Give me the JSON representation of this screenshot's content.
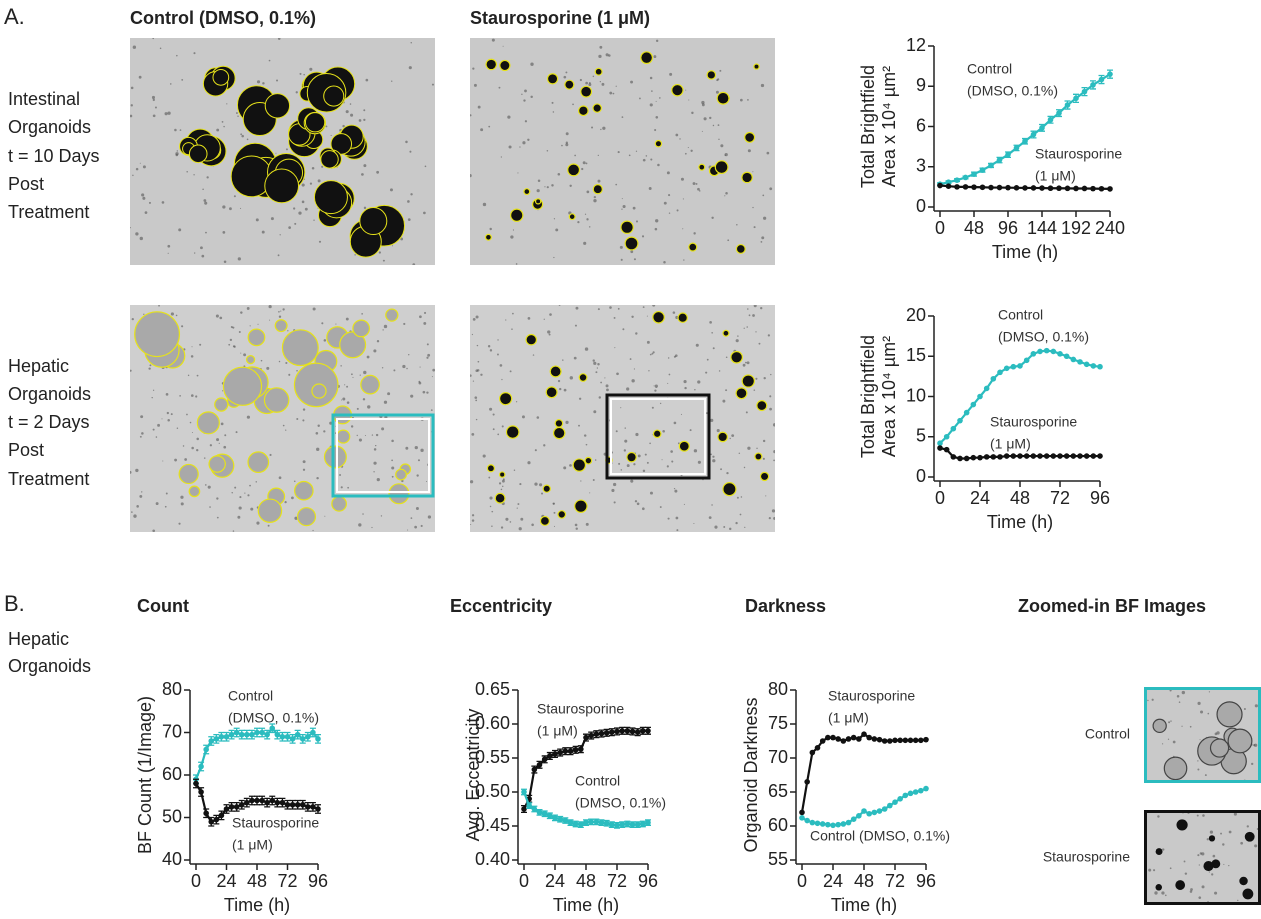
{
  "panels": {
    "a": "A.",
    "b": "B."
  },
  "columns": [
    "Control (DMSO, 0.1%)",
    "Staurosporine (1 μM)"
  ],
  "rows": [
    [
      "Intestinal",
      "Organoids",
      "t = 10 Days",
      "Post",
      "Treatment"
    ],
    [
      "Hepatic",
      "Organoids",
      "t = 2 Days",
      "Post",
      "Treatment"
    ]
  ],
  "panel_b_row": [
    "Hepatic",
    "Organoids"
  ],
  "zoom": {
    "title": "Zoomed-in BF Images",
    "labels": [
      "Control",
      "Staurosporine"
    ]
  },
  "chart_data": [
    {
      "type": "line",
      "xlabel": "Time (h)",
      "ylabel": [
        "Total Brightfield",
        "Area x 10⁴ µm²"
      ],
      "x": [
        0,
        12,
        24,
        36,
        48,
        60,
        72,
        84,
        96,
        108,
        120,
        132,
        144,
        156,
        168,
        180,
        192,
        204,
        216,
        228,
        240
      ],
      "xlim": [
        0,
        240
      ],
      "xticks": [
        0,
        48,
        96,
        144,
        192,
        240
      ],
      "ylim": [
        0,
        12
      ],
      "yticks": [
        0,
        3,
        6,
        9,
        12
      ],
      "series": [
        {
          "annotation": [
            "Control",
            "(DMSO, 0.1%)"
          ],
          "color": "#2bbcbf",
          "values": [
            1.7,
            1.85,
            2.0,
            2.2,
            2.45,
            2.75,
            3.1,
            3.5,
            3.9,
            4.4,
            4.9,
            5.4,
            5.9,
            6.5,
            7.0,
            7.6,
            8.1,
            8.6,
            9.1,
            9.5,
            9.9
          ],
          "errors": [
            0.1,
            0.1,
            0.1,
            0.1,
            0.15,
            0.15,
            0.15,
            0.2,
            0.2,
            0.2,
            0.2,
            0.25,
            0.25,
            0.25,
            0.25,
            0.3,
            0.3,
            0.3,
            0.3,
            0.3,
            0.3
          ]
        },
        {
          "annotation": [
            "Staurosporine",
            "(1 μM)"
          ],
          "color": "#111111",
          "values": [
            1.6,
            1.55,
            1.5,
            1.5,
            1.48,
            1.47,
            1.45,
            1.45,
            1.44,
            1.43,
            1.42,
            1.42,
            1.41,
            1.4,
            1.4,
            1.39,
            1.38,
            1.38,
            1.37,
            1.36,
            1.35
          ]
        }
      ]
    },
    {
      "type": "line",
      "xlabel": "Time (h)",
      "ylabel": [
        "Total Brightfield",
        "Area x 10⁴ µm²"
      ],
      "x": [
        0,
        4,
        8,
        12,
        16,
        20,
        24,
        28,
        32,
        36,
        40,
        44,
        48,
        52,
        56,
        60,
        64,
        68,
        72,
        76,
        80,
        84,
        88,
        92,
        96
      ],
      "xlim": [
        0,
        96
      ],
      "xticks": [
        0,
        24,
        48,
        72,
        96
      ],
      "ylim": [
        0,
        20
      ],
      "yticks": [
        0,
        5,
        10,
        15,
        20
      ],
      "series": [
        {
          "annotation": [
            "Control",
            "(DMSO, 0.1%)"
          ],
          "color": "#2bbcbf",
          "values": [
            4.2,
            5.0,
            6.0,
            7.0,
            8.0,
            9.0,
            10.0,
            11.0,
            12.2,
            13.0,
            13.5,
            13.7,
            13.8,
            14.5,
            15.3,
            15.6,
            15.7,
            15.6,
            15.3,
            15.0,
            14.6,
            14.3,
            14.0,
            13.8,
            13.7
          ]
        },
        {
          "annotation": [
            "Staurosporine",
            "(1 μM)"
          ],
          "color": "#111111",
          "values": [
            3.6,
            3.4,
            2.5,
            2.3,
            2.3,
            2.4,
            2.4,
            2.5,
            2.5,
            2.5,
            2.6,
            2.6,
            2.6,
            2.6,
            2.6,
            2.6,
            2.6,
            2.6,
            2.6,
            2.6,
            2.6,
            2.6,
            2.6,
            2.6,
            2.6
          ]
        }
      ]
    },
    {
      "type": "line",
      "title": "Count",
      "xlabel": "Time (h)",
      "ylabel": [
        "BF Count (1/Image)"
      ],
      "x": [
        0,
        4,
        8,
        12,
        16,
        20,
        24,
        28,
        32,
        36,
        40,
        44,
        48,
        52,
        56,
        60,
        64,
        68,
        72,
        76,
        80,
        84,
        88,
        92,
        96
      ],
      "xlim": [
        0,
        96
      ],
      "xticks": [
        0,
        24,
        48,
        72,
        96
      ],
      "ylim": [
        40,
        80
      ],
      "yticks": [
        40,
        50,
        60,
        70,
        80
      ],
      "series": [
        {
          "annotation": [
            "Control",
            "(DMSO, 0.1%)"
          ],
          "color": "#2bbcbf",
          "values": [
            59,
            62,
            66,
            68,
            68.5,
            69,
            69,
            69.5,
            70,
            69.5,
            69.5,
            69.5,
            70,
            70,
            69.5,
            71,
            69.5,
            69,
            69,
            68.5,
            69.5,
            68.5,
            69,
            70,
            68.5
          ],
          "errors": [
            1,
            1,
            1,
            1,
            1,
            1,
            1,
            1,
            1,
            1,
            1,
            1,
            1,
            1,
            1,
            1,
            1,
            1,
            1,
            1,
            1,
            1,
            1,
            1,
            1
          ]
        },
        {
          "annotation": [
            "Staurosporine",
            "(1 μM)"
          ],
          "color": "#111111",
          "values": [
            58,
            56,
            51,
            49,
            49.5,
            50.5,
            52,
            52.5,
            52.5,
            53,
            53.5,
            54,
            54,
            54,
            53.5,
            54,
            53.5,
            53.5,
            53,
            53,
            53,
            53,
            52.5,
            52.5,
            52
          ],
          "errors": [
            1,
            1,
            1,
            1,
            1,
            1,
            1,
            1,
            1,
            1,
            1,
            1,
            1,
            1,
            1,
            1,
            1,
            1,
            1,
            1,
            1,
            1,
            1,
            1,
            1
          ]
        }
      ]
    },
    {
      "type": "line",
      "title": "Eccentricity",
      "xlabel": "Time (h)",
      "ylabel": [
        "Avg. Eccentricity"
      ],
      "x": [
        0,
        4,
        8,
        12,
        16,
        20,
        24,
        28,
        32,
        36,
        40,
        44,
        48,
        52,
        56,
        60,
        64,
        68,
        72,
        76,
        80,
        84,
        88,
        92,
        96
      ],
      "xlim": [
        0,
        96
      ],
      "xticks": [
        0,
        24,
        48,
        72,
        96
      ],
      "ylim": [
        0.4,
        0.65
      ],
      "yticks": [
        {
          "value": 0.4,
          "label": "0.40"
        },
        {
          "value": 0.45,
          "label": "0.45"
        },
        {
          "value": 0.5,
          "label": "0.50"
        },
        {
          "value": 0.55,
          "label": "0.55"
        },
        {
          "value": 0.6,
          "label": "0.60"
        },
        {
          "value": 0.65,
          "label": "0.65"
        }
      ],
      "series": [
        {
          "annotation": [
            "Staurosporine",
            "(1 μM)"
          ],
          "color": "#111111",
          "values": [
            0.475,
            0.49,
            0.533,
            0.54,
            0.548,
            0.553,
            0.556,
            0.558,
            0.56,
            0.56,
            0.562,
            0.563,
            0.58,
            0.583,
            0.585,
            0.586,
            0.587,
            0.588,
            0.589,
            0.59,
            0.59,
            0.589,
            0.588,
            0.59,
            0.59
          ],
          "errors": [
            0.005,
            0.005,
            0.005,
            0.005,
            0.005,
            0.005,
            0.005,
            0.005,
            0.005,
            0.005,
            0.005,
            0.005,
            0.005,
            0.005,
            0.005,
            0.005,
            0.005,
            0.005,
            0.005,
            0.005,
            0.005,
            0.005,
            0.005,
            0.005,
            0.005
          ]
        },
        {
          "annotation": [
            "Control",
            "(DMSO, 0.1%)"
          ],
          "color": "#2bbcbf",
          "values": [
            0.5,
            0.48,
            0.475,
            0.47,
            0.468,
            0.465,
            0.462,
            0.46,
            0.458,
            0.455,
            0.453,
            0.452,
            0.455,
            0.456,
            0.456,
            0.455,
            0.454,
            0.452,
            0.451,
            0.452,
            0.453,
            0.452,
            0.452,
            0.453,
            0.455
          ],
          "errors": [
            0.004,
            0.004,
            0.004,
            0.004,
            0.004,
            0.004,
            0.004,
            0.004,
            0.004,
            0.004,
            0.004,
            0.004,
            0.004,
            0.004,
            0.004,
            0.004,
            0.004,
            0.004,
            0.004,
            0.004,
            0.004,
            0.004,
            0.004,
            0.004,
            0.004
          ]
        }
      ]
    },
    {
      "type": "line",
      "title": "Darkness",
      "xlabel": "Time (h)",
      "ylabel": [
        "Organoid Darkness"
      ],
      "x": [
        0,
        4,
        8,
        12,
        16,
        20,
        24,
        28,
        32,
        36,
        40,
        44,
        48,
        52,
        56,
        60,
        64,
        68,
        72,
        76,
        80,
        84,
        88,
        92,
        96
      ],
      "xlim": [
        0,
        96
      ],
      "xticks": [
        0,
        24,
        48,
        72,
        96
      ],
      "ylim": [
        55,
        80
      ],
      "yticks": [
        55,
        60,
        65,
        70,
        75,
        80
      ],
      "series": [
        {
          "annotation": [
            "Staurosporine",
            "(1 μM)"
          ],
          "color": "#111111",
          "values": [
            62,
            66.5,
            70.8,
            71.5,
            72.5,
            73,
            73,
            72.8,
            72.5,
            72.8,
            73,
            72.8,
            73.5,
            73,
            72.8,
            72.7,
            72.5,
            72.5,
            72.6,
            72.6,
            72.6,
            72.6,
            72.6,
            72.6,
            72.7
          ]
        },
        {
          "annotation": [
            "Control (DMSO, 0.1%)"
          ],
          "color": "#2bbcbf",
          "values": [
            61.2,
            60.8,
            60.5,
            60.4,
            60.3,
            60.2,
            60.1,
            60.2,
            60.3,
            60.5,
            61.0,
            61.5,
            62.2,
            61.8,
            62.0,
            62.2,
            62.5,
            63.0,
            63.5,
            64.0,
            64.5,
            64.8,
            65.0,
            65.2,
            65.5
          ]
        }
      ]
    }
  ]
}
